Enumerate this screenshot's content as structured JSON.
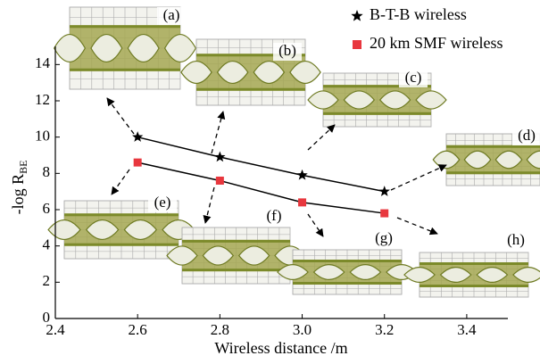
{
  "chart_data": {
    "type": "line",
    "x_label": "Wireless distance /m",
    "y_label": "-log R",
    "y_label_sub": "BE",
    "x": [
      2.6,
      2.8,
      3.0,
      3.2
    ],
    "series": [
      {
        "name": "B-T-B wireless",
        "color": "#000000",
        "marker": "star",
        "values": [
          10,
          8.9,
          7.9,
          7.0
        ]
      },
      {
        "name": "20 km SMF wireless",
        "color": "#e8373e",
        "marker": "square",
        "values": [
          8.6,
          7.6,
          6.4,
          5.8
        ]
      }
    ],
    "xlim": [
      2.4,
      3.5
    ],
    "xticks": [
      2.4,
      2.6,
      2.8,
      {
        "value": 3,
        "label": "3.0"
      },
      3.2,
      3.4
    ],
    "ylim": [
      0,
      15
    ],
    "yticks": [
      0,
      2,
      4,
      6,
      8,
      10,
      12,
      14
    ],
    "annotations": [
      "(a)",
      "(b)",
      "(c)",
      "(d)",
      "(e)",
      "(f)",
      "(g)",
      "(h)"
    ]
  }
}
